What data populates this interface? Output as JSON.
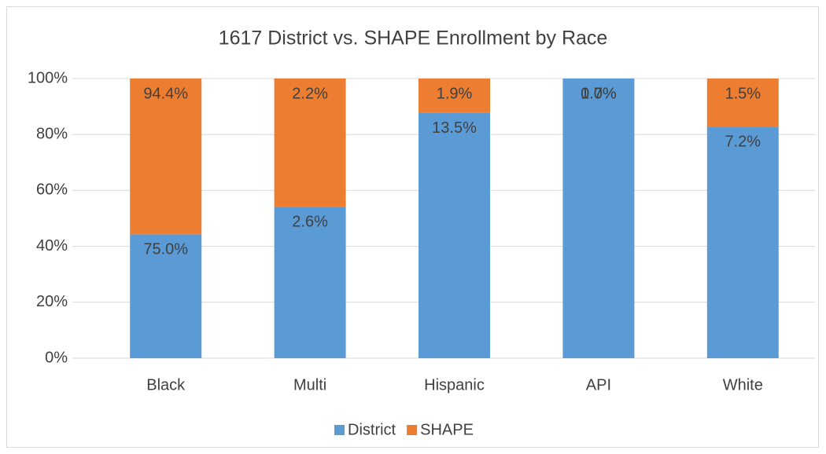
{
  "chart_data": {
    "type": "bar",
    "stacked": "percent",
    "title": "1617 District vs. SHAPE Enrollment by Race",
    "categories": [
      "Black",
      "Multi",
      "Hispanic",
      "API",
      "White"
    ],
    "series": [
      {
        "name": "District",
        "color": "#5b9bd5",
        "values": [
          75.0,
          2.6,
          13.5,
          1.7,
          7.2
        ],
        "value_labels": [
          "75.0%",
          "2.6%",
          "13.5%",
          "1.7%",
          "7.2%"
        ]
      },
      {
        "name": "SHAPE",
        "color": "#ed7d31",
        "values": [
          94.4,
          2.2,
          1.9,
          0.0,
          1.5
        ],
        "value_labels": [
          "94.4%",
          "2.2%",
          "1.9%",
          "0.0%",
          "1.5%"
        ]
      }
    ],
    "ylim": [
      0,
      100
    ],
    "yticks": [
      {
        "value": 0,
        "label": "0%"
      },
      {
        "value": 20,
        "label": "20%"
      },
      {
        "value": 40,
        "label": "40%"
      },
      {
        "value": 60,
        "label": "60%"
      },
      {
        "value": 80,
        "label": "80%"
      },
      {
        "value": 100,
        "label": "100%"
      }
    ],
    "grid": true,
    "legend": "bottom"
  }
}
